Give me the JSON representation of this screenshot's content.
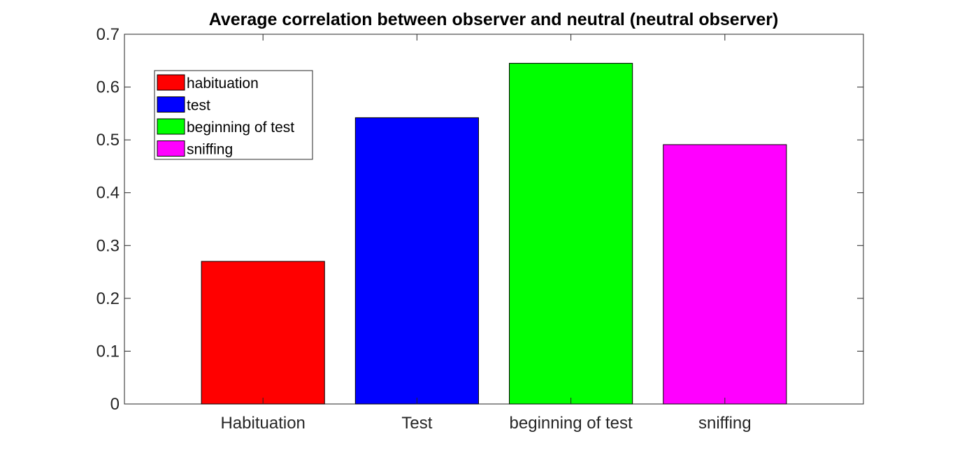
{
  "chart_data": {
    "type": "bar",
    "title": "Average correlation between observer and neutral (neutral observer)",
    "xlabel": "",
    "ylabel": "",
    "categories": [
      "Habituation",
      "Test",
      "beginning of test",
      "sniffing"
    ],
    "values": [
      0.27,
      0.542,
      0.645,
      0.491
    ],
    "colors": [
      "#ff0000",
      "#0000ff",
      "#00ff00",
      "#ff00ff"
    ],
    "ylim": [
      0,
      0.7
    ],
    "yticks": [
      "0",
      "0.1",
      "0.2",
      "0.3",
      "0.4",
      "0.5",
      "0.6",
      "0.7"
    ],
    "grid": false,
    "legend": {
      "placement": "top-left",
      "entries": [
        {
          "label": "habituation",
          "color": "#ff0000"
        },
        {
          "label": "test",
          "color": "#0000ff"
        },
        {
          "label": "beginning of test",
          "color": "#00ff00"
        },
        {
          "label": "sniffing",
          "color": "#ff00ff"
        }
      ]
    }
  }
}
